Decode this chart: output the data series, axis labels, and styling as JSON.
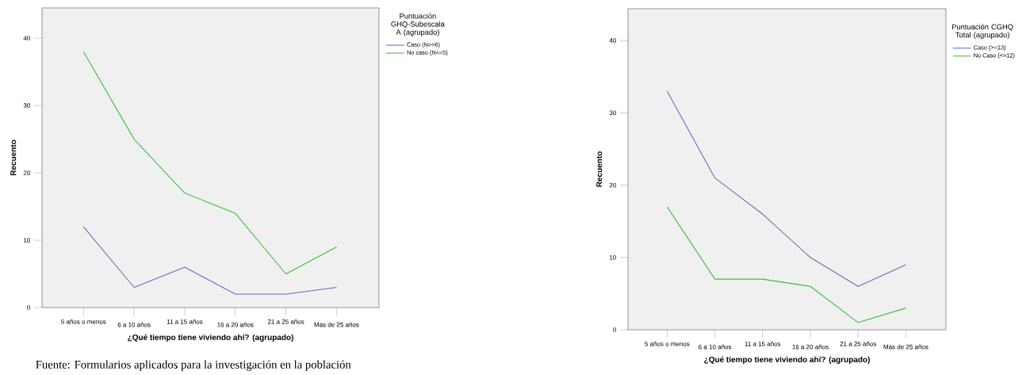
{
  "chart_data": [
    {
      "type": "line",
      "xlabel": "¿Qué tiempo tiene viviendo ahí? (agrupado)",
      "ylabel": "Recuento",
      "legend_title": "Puntuación GHQ-Subescala A (agrupado)",
      "categories": [
        "5 años o menos",
        "6 a 10 años",
        "11 a 15 años",
        "16 a 20 años",
        "21 a 25 años",
        "Más de 25 años"
      ],
      "series": [
        {
          "name": "Caso (N>=6)",
          "color": "#5b6fc2",
          "values": [
            12,
            3,
            6,
            2,
            2,
            3
          ]
        },
        {
          "name": "No caso (N<=5)",
          "color": "#3dbd3d",
          "values": [
            38,
            25,
            17,
            14,
            5,
            9
          ]
        }
      ],
      "ylim": [
        0,
        44.5
      ],
      "yticks": [
        0,
        10,
        20,
        30,
        40
      ],
      "grid": false,
      "legend": "top right",
      "marker": "none",
      "line_style": "solid",
      "annotations": [
        "Fuente: Formularios aplicados para la investigación en la población"
      ]
    },
    {
      "type": "line",
      "xlabel": "¿Qué tiempo tiene viviendo ahí? (agrupado)",
      "ylabel": "Recuento",
      "legend_title": "Puntuación CGHQ Total (agrupado)",
      "categories": [
        "5 años o menos",
        "6 a 10 años",
        "11 a 15 años",
        "16 a 20 años",
        "21 a 25 años",
        "Más de 25 años"
      ],
      "series": [
        {
          "name": "Caso (>=13)",
          "color": "#5b6fc2",
          "values": [
            33,
            21,
            16,
            10,
            6,
            9
          ]
        },
        {
          "name": "No Caso (<=12)",
          "color": "#3dbd3d",
          "values": [
            17,
            7,
            7,
            6,
            1,
            3
          ]
        }
      ],
      "ylim": [
        0,
        44.4
      ],
      "yticks": [
        0,
        10,
        20,
        30,
        40
      ],
      "grid": false,
      "legend": "top right",
      "marker": "none",
      "line_style": "solid"
    }
  ]
}
